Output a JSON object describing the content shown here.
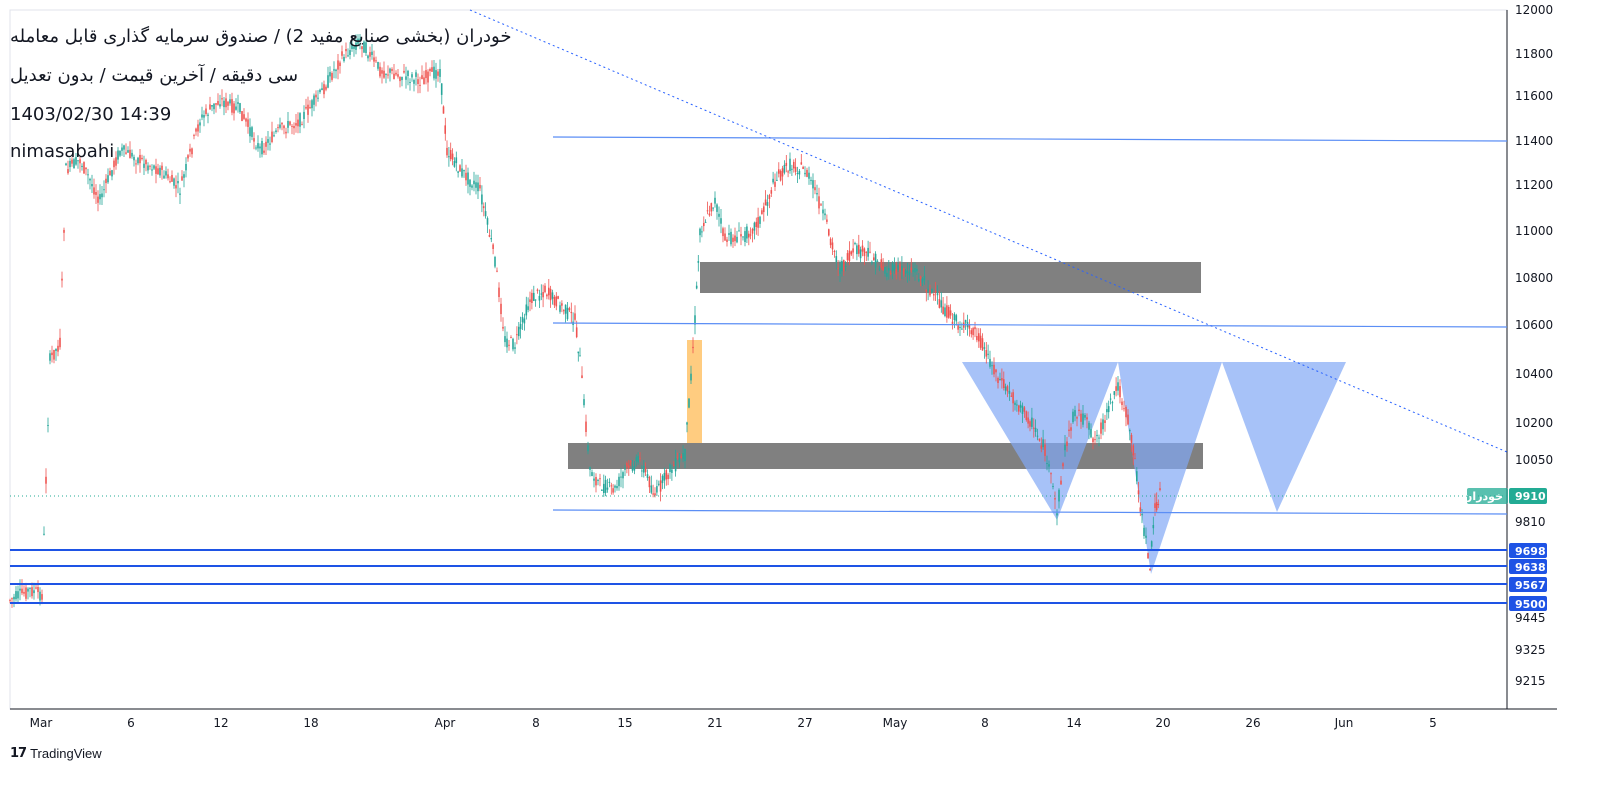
{
  "header": {
    "title_line1": "خودران (بخشی صنایع مفید 2) / صندوق سرمایه گذاری قابل معامله",
    "title_line2": "سی دقیقه / آخرین قیمت / بدون تعدیل",
    "datetime": "1403/02/30 14:39",
    "author": "nimasabahi"
  },
  "footer": {
    "brand": "TradingView"
  },
  "chart_data": {
    "type": "candlestick",
    "y_axis": {
      "ticks": [
        "12000",
        "11800",
        "11600",
        "11400",
        "11200",
        "11000",
        "10800",
        "10600",
        "10400",
        "10200",
        "10050",
        "9810",
        "9445",
        "9325",
        "9215"
      ],
      "range": [
        9100,
        12000
      ]
    },
    "x_axis": {
      "ticks": [
        "Mar",
        "6",
        "12",
        "18",
        "Apr",
        "8",
        "15",
        "21",
        "27",
        "May",
        "8",
        "14",
        "20",
        "26",
        "Jun",
        "5"
      ]
    },
    "last_price": {
      "label": "خودران",
      "value": "9910",
      "color": "#22ab94"
    },
    "levels": [
      {
        "value": "9698",
        "color": "#1e53e5"
      },
      {
        "value": "9638",
        "color": "#1e53e5"
      },
      {
        "value": "9567",
        "color": "#1e53e5"
      },
      {
        "value": "9500",
        "color": "#1e53e5"
      }
    ],
    "trend_lines": [
      {
        "from": [
          "Apr 10",
          11415
        ],
        "to": [
          "Jun 6",
          11400
        ]
      },
      {
        "from": [
          "Apr 10",
          10610
        ],
        "to": [
          "Jun 6",
          10590
        ]
      },
      {
        "from": [
          "Apr 10",
          9845
        ],
        "to": [
          "Jun 6",
          9830
        ]
      }
    ],
    "zones": [
      {
        "from": "Apr 20",
        "to": "May 23",
        "low": 10735,
        "high": 10870,
        "color": "#808080"
      },
      {
        "from": "Apr 10",
        "to": "May 23",
        "low": 9965,
        "high": 10110,
        "color": "#808080"
      },
      {
        "from": "Apr 19",
        "to": "Apr 20",
        "low": 10100,
        "high": 10545,
        "color": "#ffcc80"
      }
    ],
    "triangles": [
      {
        "top_left": [
          "May 6",
          10450
        ],
        "top_right": [
          "May 17",
          10450
        ],
        "bottom": [
          "May 12",
          9810
        ]
      },
      {
        "top_left": [
          "May 17",
          10450
        ],
        "top_right": [
          "May 22",
          10450
        ],
        "bottom": [
          "May 19",
          9590
        ]
      },
      {
        "top_left": [
          "May 22",
          10450
        ],
        "top_right": [
          "Jun 1",
          10450
        ],
        "bottom": [
          "May 27",
          9840
        ]
      }
    ],
    "colors": {
      "up": "#26a69a",
      "down": "#ef5350",
      "line": "#2962ff",
      "triangle": "#82a8f5"
    }
  }
}
